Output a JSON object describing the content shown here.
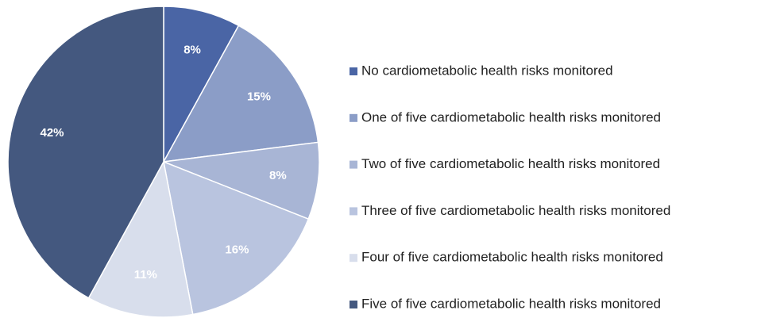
{
  "chart_data": {
    "type": "pie",
    "categories": [
      "No cardiometabolic health risks monitored",
      "One of five cardiometabolic health risks monitored",
      "Two of five cardiometabolic health risks monitored",
      "Three of five cardiometabolic health risks monitored",
      "Four of five cardiometabolic health risks monitored",
      "Five of five cardiometabolic health risks monitored"
    ],
    "values": [
      8,
      15,
      8,
      16,
      11,
      42
    ],
    "value_labels": [
      "8%",
      "15%",
      "8%",
      "16%",
      "11%",
      "42%"
    ],
    "colors": [
      "#4a65a5",
      "#8b9dc7",
      "#a8b5d5",
      "#b9c4df",
      "#d8deec",
      "#44587f"
    ],
    "legend": "right"
  }
}
